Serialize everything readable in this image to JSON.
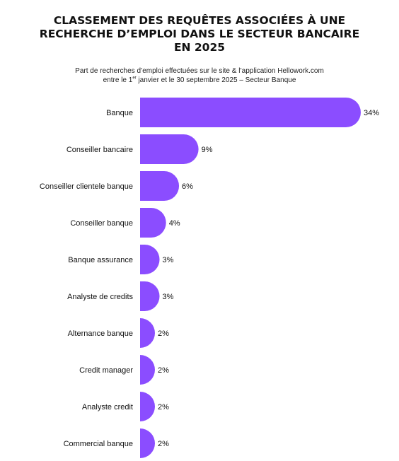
{
  "header": {
    "title_lines": [
      "CLASSEMENT DES REQUÊTES ASSOCIÉES À UNE",
      "RECHERCHE D’EMPLOI DANS LE SECTEUR BANCAIRE",
      "EN 2025"
    ],
    "subtitle_line1": "Part de recherches d’emploi effectuées sur le site & l’application Hellowork.com",
    "subtitle_line2_pre": "entre le 1",
    "subtitle_line2_sup": "er",
    "subtitle_line2_post": " janvier et le 30 septembre 2025 – Secteur Banque"
  },
  "colors": {
    "bar": "#8b4dff",
    "text": "#111111"
  },
  "chart_data": {
    "type": "bar",
    "orientation": "horizontal",
    "categories": [
      "Banque",
      "Conseiller bancaire",
      "Conseiller clientele banque",
      "Conseiller banque",
      "Banque assurance",
      "Analyste de credits",
      "Alternance banque",
      "Credit manager",
      "Analyste credit",
      "Commercial banque"
    ],
    "values": [
      34,
      9,
      6,
      4,
      3,
      3,
      2,
      2,
      2,
      2
    ],
    "value_labels": [
      "34%",
      "9%",
      "6%",
      "4%",
      "3%",
      "3%",
      "2%",
      "2%",
      "2%",
      "2%"
    ],
    "unit": "%",
    "grid": false,
    "legend": "none"
  }
}
